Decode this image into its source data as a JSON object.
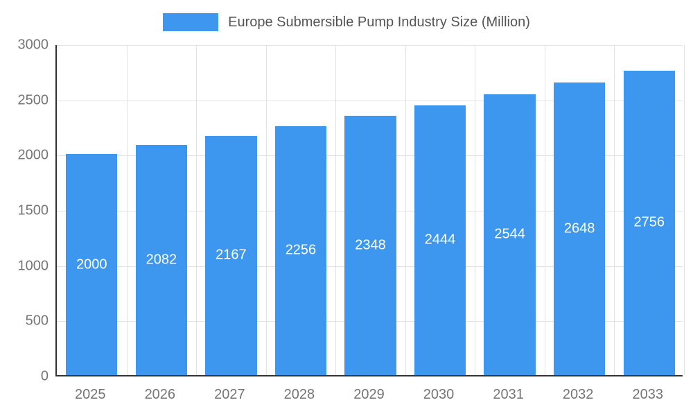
{
  "legend": {
    "label": "Europe Submersible Pump Industry Size (Million)"
  },
  "colors": {
    "bar": "#3d97ee",
    "grid": "#e2e2e2",
    "axis": "#333333",
    "tick_text": "#757575",
    "legend_text": "#555555",
    "value_text": "#ffffff"
  },
  "chart_data": {
    "type": "bar",
    "title": "Europe Submersible Pump Industry Size (Million)",
    "categories": [
      "2025",
      "2026",
      "2027",
      "2028",
      "2029",
      "2030",
      "2031",
      "2032",
      "2033"
    ],
    "values": [
      2000,
      2082,
      2167,
      2256,
      2348,
      2444,
      2544,
      2648,
      2756
    ],
    "xlabel": "",
    "ylabel": "",
    "ylim": [
      0,
      3000
    ],
    "yticks": [
      0,
      500,
      1000,
      1500,
      2000,
      2500,
      3000
    ],
    "grid": true,
    "legend_position": "top",
    "value_labels": "inside-center"
  }
}
